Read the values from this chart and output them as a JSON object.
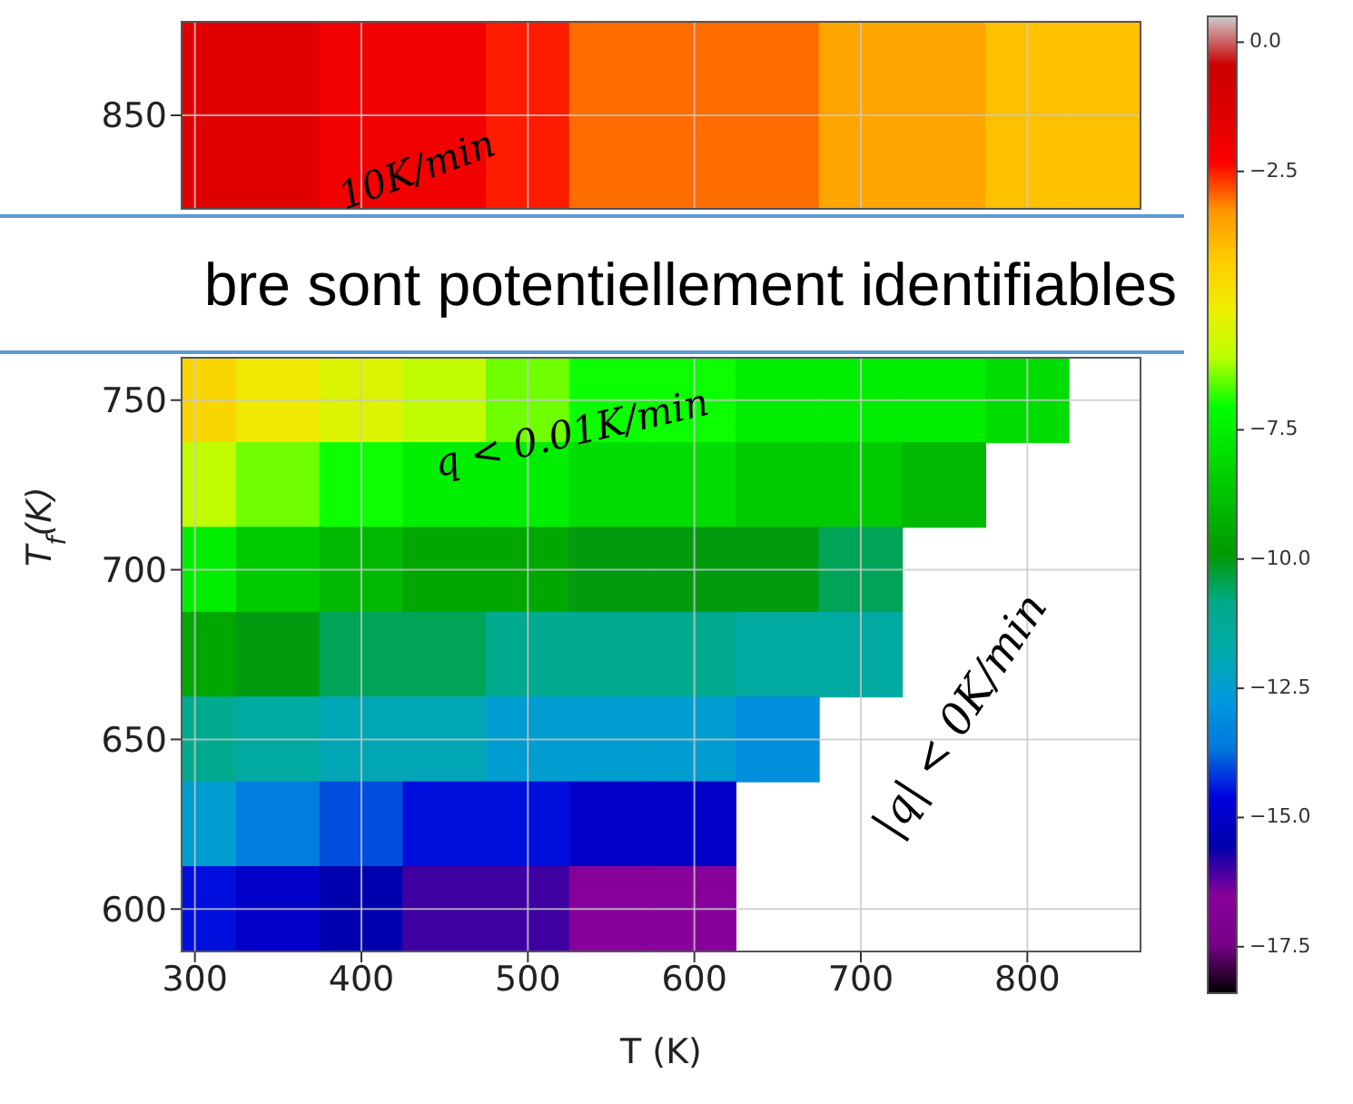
{
  "chart_data": [
    {
      "type": "heatmap",
      "x": [
        300,
        350,
        400,
        450,
        500,
        550,
        600,
        650,
        700,
        750,
        800,
        850
      ],
      "y_categories": [
        "850"
      ],
      "cells": [
        [
          -1.5,
          -1.5,
          -2,
          -2,
          -2.5,
          -3,
          -3,
          -3,
          -3.5,
          -3.5,
          -4,
          -4
        ]
      ],
      "clim": [
        -18.4,
        0.5
      ],
      "cticks": [
        {
          "value": -2.5,
          "label": "−2.5"
        },
        {
          "value": 0,
          "label": "0.0"
        }
      ],
      "xlim": [
        292,
        868
      ],
      "xticks": [
        300,
        400,
        500,
        600,
        700,
        800
      ],
      "tick_labels": "y",
      "grid": true,
      "annotations": [
        "10K/min"
      ]
    },
    {
      "type": "heatmap",
      "xlabel": "T (K)",
      "ylabel": "T$_{f}$(K)",
      "x": [
        300,
        350,
        400,
        450,
        500,
        550,
        600,
        650,
        700,
        750,
        800
      ],
      "y_categories": [
        "750",
        null,
        "700",
        null,
        "650",
        null,
        "600"
      ],
      "cells": [
        [
          -4.5,
          -5,
          -5.5,
          -6,
          -6.5,
          -7,
          -7,
          -7.5,
          -7.5,
          -7.5,
          -8
        ],
        [
          -6,
          -6.5,
          -7,
          -7.5,
          -7.5,
          -8,
          -8,
          -8.5,
          -8.5,
          -9,
          null
        ],
        [
          -7.5,
          -8.5,
          -9,
          -9.5,
          -9.5,
          -10,
          -10,
          -10,
          -10.5,
          null,
          null
        ],
        [
          -9.5,
          -10,
          -10.5,
          -10.5,
          -11,
          -11,
          -11,
          -11.5,
          -11.5,
          null,
          null
        ],
        [
          -11,
          -11.5,
          -12,
          -12,
          -12.5,
          -12.5,
          -12.5,
          -13,
          null,
          null,
          null
        ],
        [
          -12.5,
          -13.5,
          -14,
          -14.5,
          -14.5,
          -15,
          -15,
          null,
          null,
          null,
          null
        ],
        [
          -14.5,
          -15,
          -15.5,
          -16,
          -16,
          -16.5,
          -16.5,
          null,
          null,
          null,
          null
        ]
      ],
      "clim": [
        -18.4,
        0.5
      ],
      "cticks": [
        {
          "value": -17.5,
          "label": "−17.5"
        },
        {
          "value": -15,
          "label": "−15.0"
        },
        {
          "value": -12.5,
          "label": "−12.5"
        },
        {
          "value": -10,
          "label": "−10.0"
        },
        {
          "value": -7.5,
          "label": "−7.5"
        }
      ],
      "xlim": [
        292,
        868
      ],
      "xticks": [
        300,
        400,
        500,
        600,
        700,
        800
      ],
      "grid": true,
      "annotations": [
        "q < 0.01K/min",
        "|q| < 0K/min",
        "bre sont potentiellement identifiables"
      ]
    }
  ]
}
